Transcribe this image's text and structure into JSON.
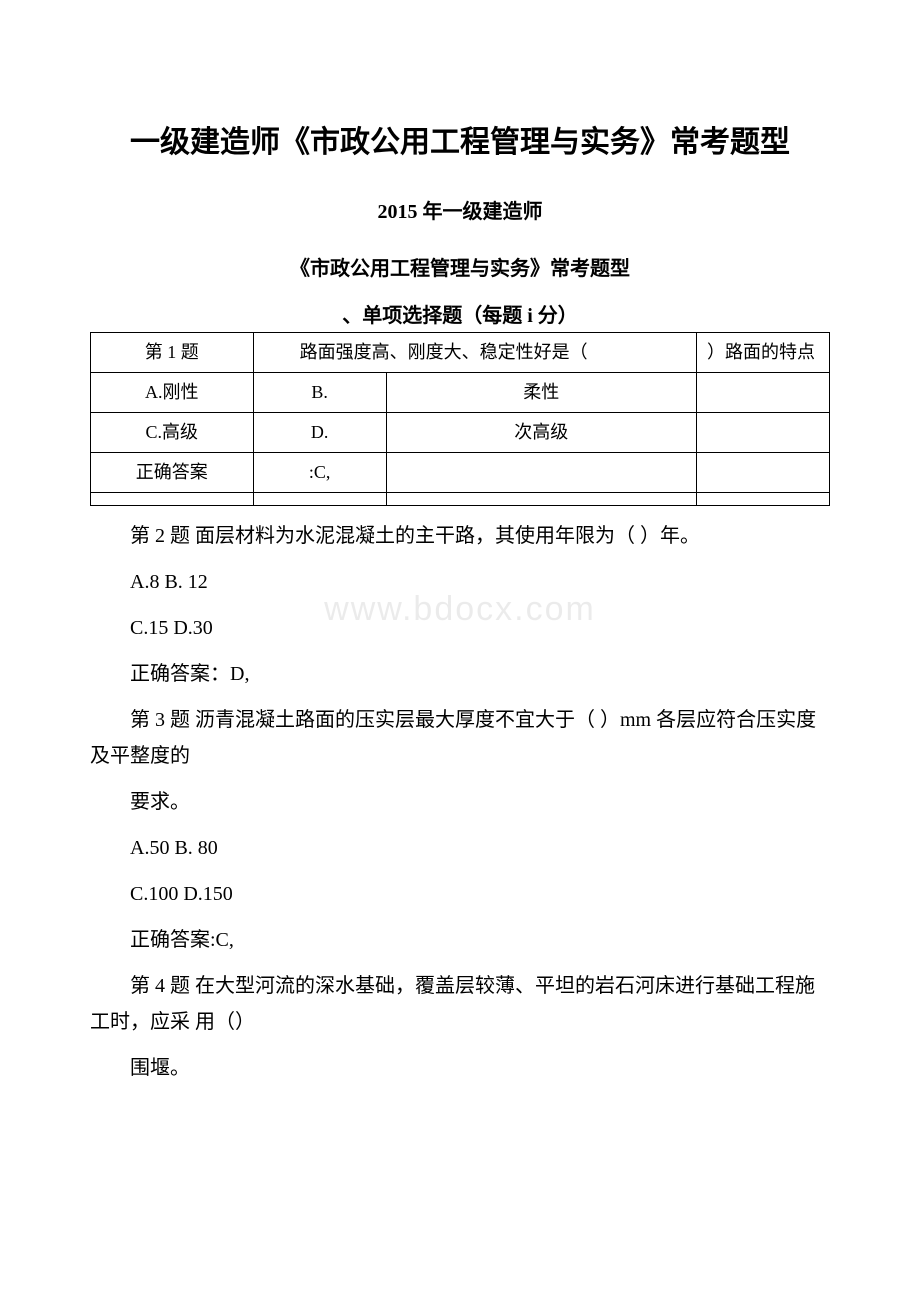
{
  "title_main": "一级建造师《市政公用工程管理与实务》常考题型",
  "subtitle_year": "2015 年一级建造师",
  "subtitle_doc": "《市政公用工程管理与实务》常考题型",
  "section_header": "、单项选择题（每题 i 分）",
  "watermark": "www.bdocx.com",
  "q1_table": {
    "rows": [
      [
        "第 1 题",
        "  路面强度高、刚度大、稳定性好是（",
        "）路面的特点"
      ],
      [
        "A.刚性",
        "B.",
        "柔性",
        ""
      ],
      [
        "C.高级",
        "D.",
        "次高级",
        ""
      ],
      [
        "正确答案",
        ":C,",
        "",
        ""
      ],
      [
        "",
        "",
        "",
        ""
      ]
    ]
  },
  "paragraphs": [
    "第 2 题 面层材料为水泥混凝土的主干路，其使用年限为（ ）年。",
    "A.8 B. 12",
    "C.15 D.30",
    "正确答案：D,",
    "第 3 题 沥青混凝土路面的压实层最大厚度不宜大于（ ）mm 各层应符合压实度及平整度的",
    "要求。",
    "A.50 B. 80",
    "C.100 D.150",
    "正确答案:C,",
    "第 4 题 在大型河流的深水基础，覆盖层较薄、平坦的岩石河床进行基础工程施工时，应采 用（）",
    "围堰。"
  ],
  "colors": {
    "text": "#000000",
    "background": "#ffffff",
    "border": "#000000"
  },
  "fonts": {
    "title_size": 30,
    "subtitle_size": 20,
    "body_size": 20,
    "table_size": 18
  }
}
